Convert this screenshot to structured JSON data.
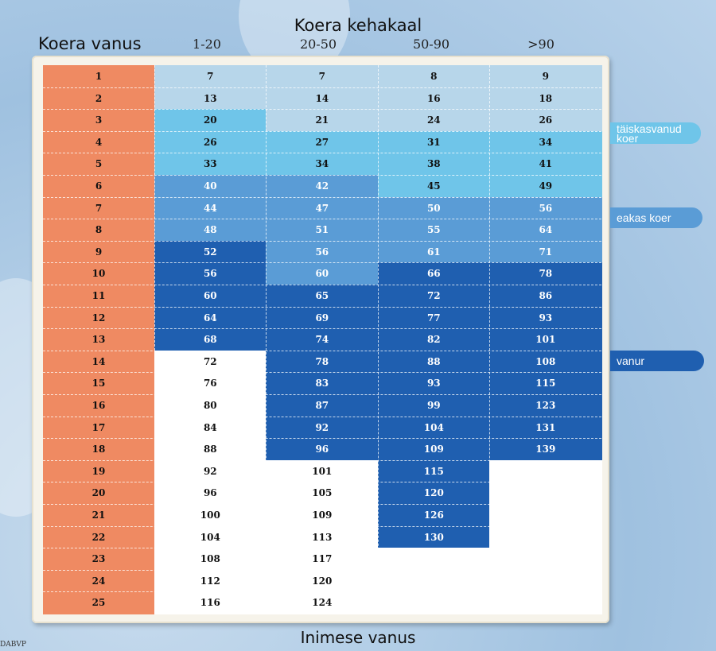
{
  "chart_data": {
    "type": "table",
    "title": "Koera kehakaal",
    "row_header_title": "Koera vanus",
    "bottom_label": "Inimese vanus",
    "columns": [
      "1-20",
      "20-50",
      "50-90",
      ">90"
    ],
    "rows": [
      {
        "age": "1",
        "values": [
          "7",
          "7",
          "8",
          "9"
        ]
      },
      {
        "age": "2",
        "values": [
          "13",
          "14",
          "16",
          "18"
        ]
      },
      {
        "age": "3",
        "values": [
          "20",
          "21",
          "24",
          "26"
        ]
      },
      {
        "age": "4",
        "values": [
          "26",
          "27",
          "31",
          "34"
        ]
      },
      {
        "age": "5",
        "values": [
          "33",
          "34",
          "38",
          "41"
        ]
      },
      {
        "age": "6",
        "values": [
          "40",
          "42",
          "45",
          "49"
        ]
      },
      {
        "age": "7",
        "values": [
          "44",
          "47",
          "50",
          "56"
        ]
      },
      {
        "age": "8",
        "values": [
          "48",
          "51",
          "55",
          "64"
        ]
      },
      {
        "age": "9",
        "values": [
          "52",
          "56",
          "61",
          "71"
        ]
      },
      {
        "age": "10",
        "values": [
          "56",
          "60",
          "66",
          "78"
        ]
      },
      {
        "age": "11",
        "values": [
          "60",
          "65",
          "72",
          "86"
        ]
      },
      {
        "age": "12",
        "values": [
          "64",
          "69",
          "77",
          "93"
        ]
      },
      {
        "age": "13",
        "values": [
          "68",
          "74",
          "82",
          "101"
        ]
      },
      {
        "age": "14",
        "values": [
          "72",
          "78",
          "88",
          "108"
        ]
      },
      {
        "age": "15",
        "values": [
          "76",
          "83",
          "93",
          "115"
        ]
      },
      {
        "age": "16",
        "values": [
          "80",
          "87",
          "99",
          "123"
        ]
      },
      {
        "age": "17",
        "values": [
          "84",
          "92",
          "104",
          "131"
        ]
      },
      {
        "age": "18",
        "values": [
          "88",
          "96",
          "109",
          "139"
        ]
      },
      {
        "age": "19",
        "values": [
          "92",
          "101",
          "115",
          null
        ]
      },
      {
        "age": "20",
        "values": [
          "96",
          "105",
          "120",
          null
        ]
      },
      {
        "age": "21",
        "values": [
          "100",
          "109",
          "126",
          null
        ]
      },
      {
        "age": "22",
        "values": [
          "104",
          "113",
          "130",
          null
        ]
      },
      {
        "age": "23",
        "values": [
          "108",
          "117",
          null,
          null
        ]
      },
      {
        "age": "24",
        "values": [
          "112",
          "120",
          null,
          null
        ]
      },
      {
        "age": "25",
        "values": [
          "116",
          "124",
          null,
          null
        ]
      }
    ],
    "stage_end_row": [
      [
        2,
        5,
        8,
        13
      ],
      [
        3,
        5,
        10,
        18
      ],
      [
        3,
        6,
        9,
        22
      ],
      [
        3,
        6,
        9,
        18
      ]
    ],
    "stages": [
      {
        "name": "",
        "color": "#b7d6ea"
      },
      {
        "name": "täiskasvanud koer",
        "color": "#6fc5e9"
      },
      {
        "name": "eakas koer",
        "color": "#5a9cd6"
      },
      {
        "name": "vanur",
        "color": "#1f5fb0"
      }
    ],
    "age_column_color": "#ef8a62",
    "empty_color": "#ffffff"
  },
  "source": "DABVP"
}
